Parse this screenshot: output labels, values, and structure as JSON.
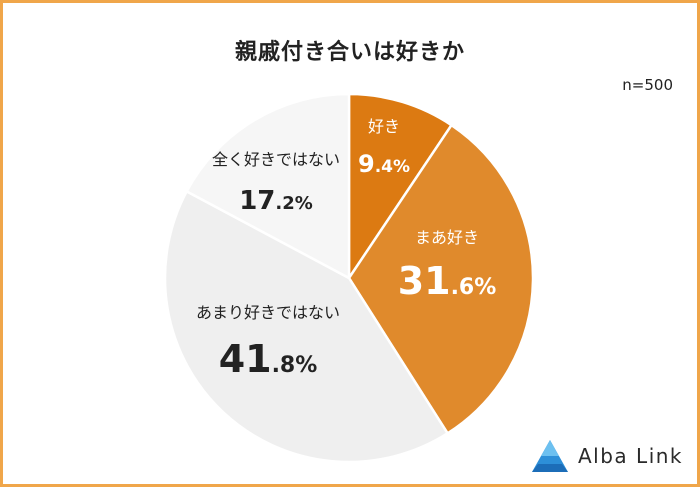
{
  "title": "親戚付き合いは好きか",
  "sample_size": "n=500",
  "brand": "Alba Link",
  "chart_data": {
    "type": "pie",
    "title": "親戚付き合いは好きか",
    "slices": [
      {
        "label": "好き",
        "value": 9.4,
        "int": "9",
        "dec": ".4%",
        "color": "#dc7a12"
      },
      {
        "label": "まあ好き",
        "value": 31.6,
        "int": "31",
        "dec": ".6%",
        "color": "#e08a2c"
      },
      {
        "label": "あまり好きではない",
        "value": 41.8,
        "int": "41",
        "dec": ".8%",
        "color": "#efefef"
      },
      {
        "label": "全く好きではない",
        "value": 17.2,
        "int": "17",
        "dec": ".2%",
        "color": "#f6f6f6"
      }
    ]
  }
}
